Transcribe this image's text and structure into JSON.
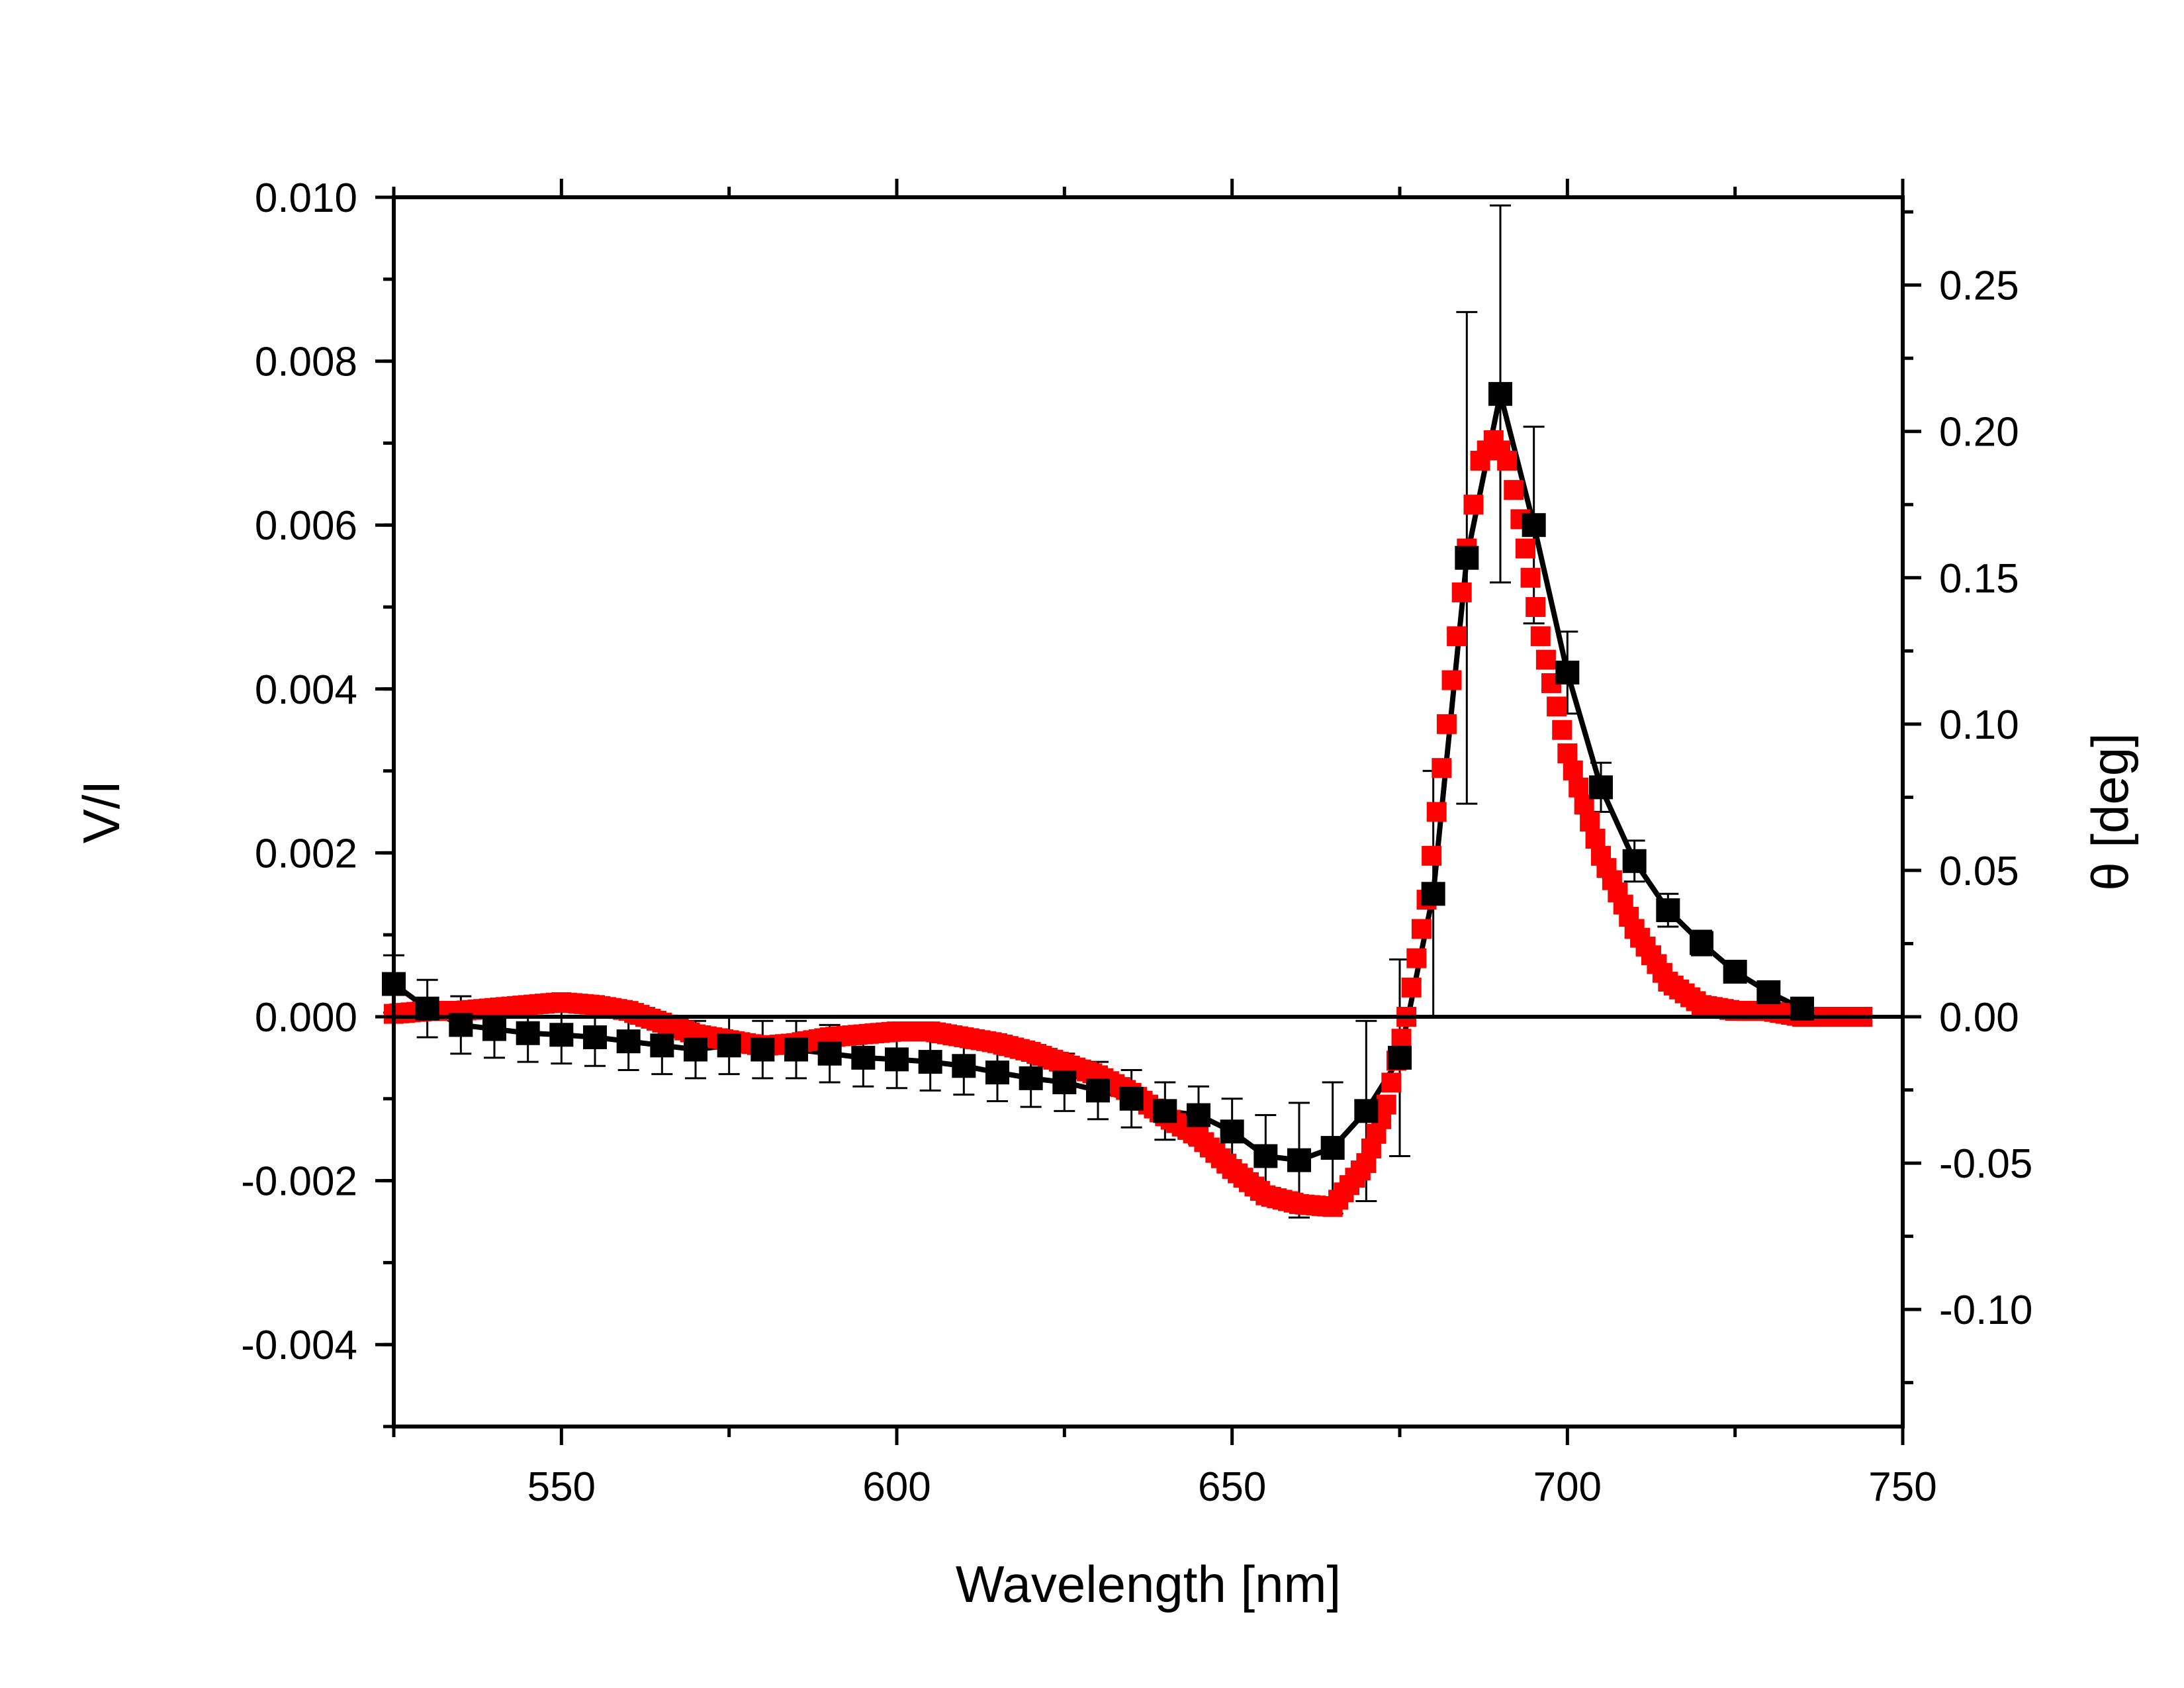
{
  "chart_data": {
    "type": "line",
    "title": "",
    "xlabel": "Wavelength [nm]",
    "ylabel": "V/I",
    "y2label": "θ [deg]",
    "xlim": [
      525,
      750
    ],
    "ylim": [
      -0.005,
      0.01
    ],
    "y2lim": [
      -0.14,
      0.28
    ],
    "xticks": [
      550,
      600,
      650,
      700,
      750
    ],
    "xtick_labels": [
      "550",
      "600",
      "650",
      "700",
      "750"
    ],
    "yticks": [
      -0.004,
      -0.002,
      0.0,
      0.002,
      0.004,
      0.006,
      0.008,
      0.01
    ],
    "ytick_labels": [
      "-0.004",
      "-0.002",
      "0.000",
      "0.002",
      "0.004",
      "0.006",
      "0.008",
      "0.010"
    ],
    "y2ticks": [
      -0.1,
      -0.05,
      0.0,
      0.05,
      0.1,
      0.15,
      0.2,
      0.25
    ],
    "y2tick_labels": [
      "-0.10",
      "-0.05",
      "0.00",
      "0.05",
      "0.10",
      "0.15",
      "0.20",
      "0.25"
    ],
    "zero_line": 0,
    "grid": false,
    "series": [
      {
        "name": "V/I",
        "axis": "left",
        "color": "#000000",
        "marker": "square",
        "x": [
          525,
          530,
          535,
          540,
          545,
          550,
          555,
          560,
          565,
          570,
          575,
          580,
          585,
          590,
          595,
          600,
          605,
          610,
          615,
          620,
          625,
          630,
          635,
          640,
          645,
          650,
          655,
          660,
          665,
          670,
          675,
          680,
          685,
          690,
          695,
          700,
          705,
          710,
          715,
          720,
          725,
          730,
          735
        ],
        "y": [
          0.0004,
          0.0001,
          -0.0001,
          -0.00015,
          -0.0002,
          -0.00022,
          -0.00025,
          -0.0003,
          -0.00035,
          -0.0004,
          -0.00035,
          -0.0004,
          -0.0004,
          -0.00045,
          -0.0005,
          -0.00052,
          -0.00055,
          -0.0006,
          -0.00068,
          -0.00075,
          -0.0008,
          -0.0009,
          -0.001,
          -0.00115,
          -0.0012,
          -0.0014,
          -0.0017,
          -0.00175,
          -0.0016,
          -0.00115,
          -0.0005,
          0.0015,
          0.0056,
          0.0076,
          0.006,
          0.0042,
          0.0028,
          0.0019,
          0.0013,
          0.0009,
          0.00055,
          0.0003,
          0.0001
        ],
        "yerr": [
          0.00035,
          0.00035,
          0.00035,
          0.00035,
          0.00035,
          0.00035,
          0.00035,
          0.00035,
          0.00035,
          0.00035,
          0.00035,
          0.00035,
          0.00035,
          0.00035,
          0.00035,
          0.00035,
          0.00035,
          0.00035,
          0.00035,
          0.00035,
          0.00035,
          0.00035,
          0.00035,
          0.00035,
          0.00035,
          0.0004,
          0.0005,
          0.0007,
          0.0008,
          0.0011,
          0.0012,
          0.0015,
          0.003,
          0.0023,
          0.0012,
          0.0005,
          0.0003,
          0.00025,
          0.0002,
          0.00015,
          0.0001,
          0.0001,
          0.0001
        ]
      },
      {
        "name": "θ",
        "axis": "right",
        "color": "#ff0000",
        "marker": "square",
        "x": [
          525,
          530,
          535,
          540,
          545,
          550,
          555,
          560,
          565,
          570,
          575,
          580,
          585,
          590,
          595,
          600,
          605,
          610,
          615,
          620,
          625,
          630,
          635,
          640,
          645,
          650,
          655,
          660,
          665,
          670,
          673,
          676,
          679,
          682,
          685,
          687,
          689,
          691,
          693,
          696,
          700,
          705,
          710,
          715,
          720,
          725,
          730,
          735,
          740,
          744
        ],
        "y": [
          0.001,
          0.002,
          0.002,
          0.003,
          0.004,
          0.005,
          0.004,
          0.002,
          -0.002,
          -0.006,
          -0.008,
          -0.01,
          -0.009,
          -0.007,
          -0.006,
          -0.005,
          -0.005,
          -0.007,
          -0.009,
          -0.012,
          -0.016,
          -0.02,
          -0.026,
          -0.034,
          -0.041,
          -0.052,
          -0.061,
          -0.064,
          -0.065,
          -0.05,
          -0.03,
          0.0,
          0.04,
          0.1,
          0.16,
          0.19,
          0.197,
          0.19,
          0.17,
          0.13,
          0.09,
          0.055,
          0.03,
          0.012,
          0.004,
          0.002,
          0.002,
          0.0,
          0.0,
          0.0
        ]
      }
    ]
  }
}
